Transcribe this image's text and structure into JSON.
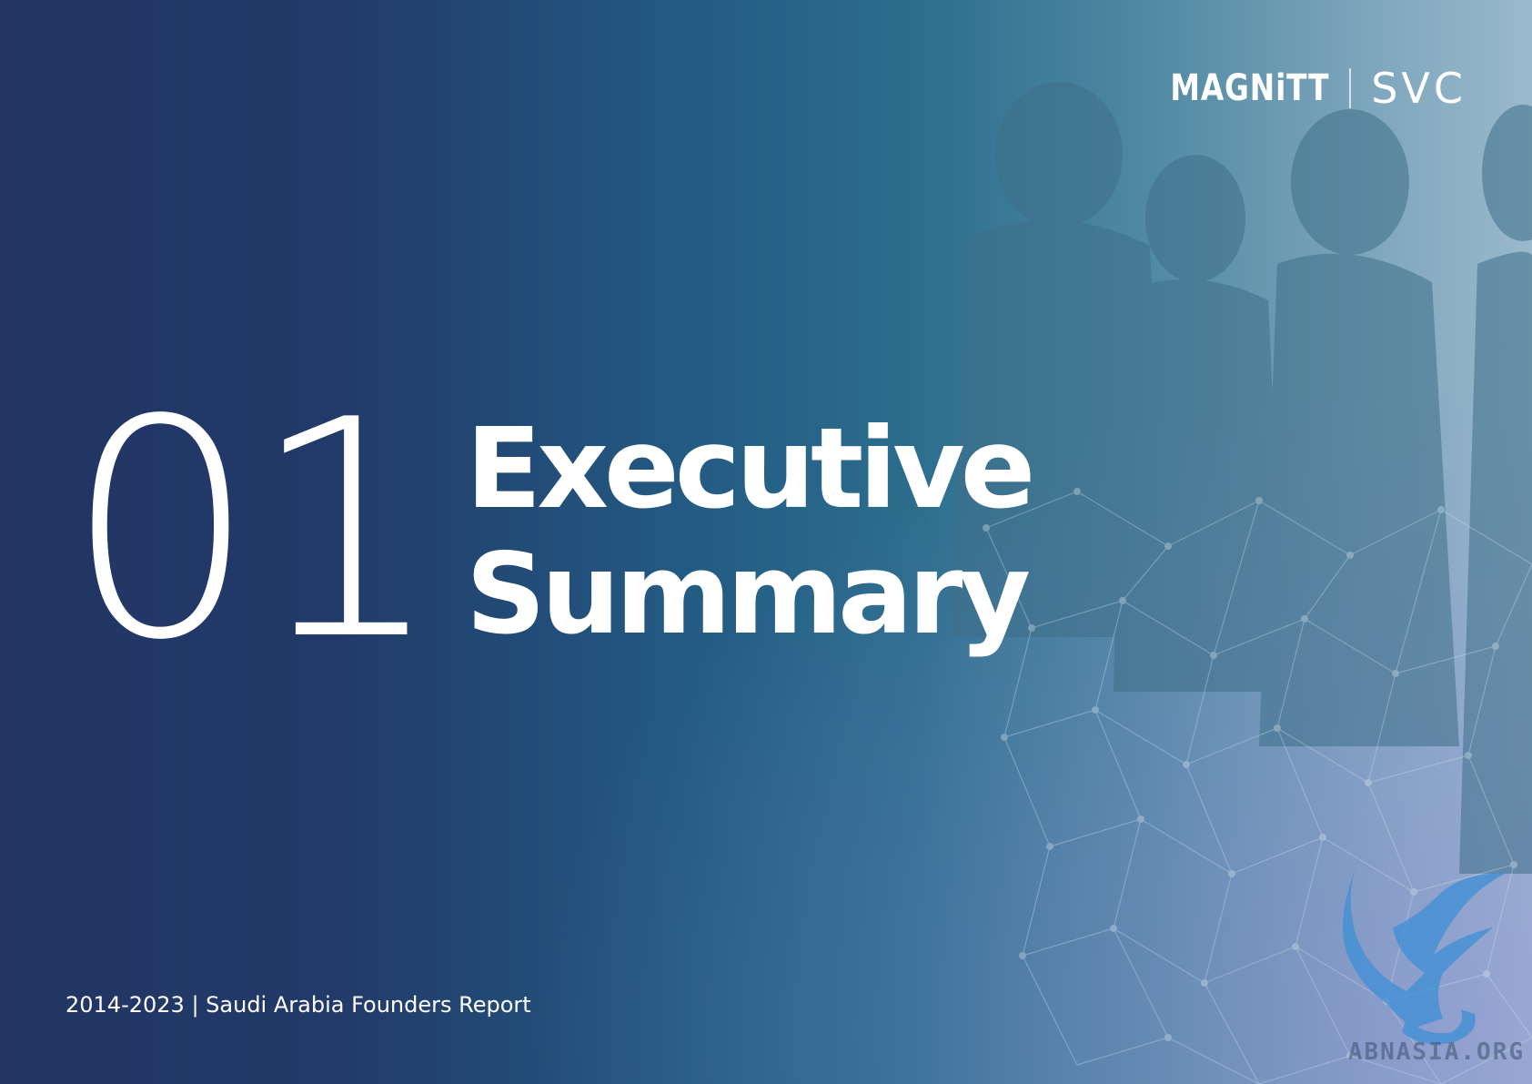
{
  "logos": {
    "magnitt": "MAGNiTT",
    "svc": "SVC"
  },
  "section": {
    "number": "01",
    "title_line1": "Executive",
    "title_line2": "Summary"
  },
  "footer": {
    "text": "2014-2023 | Saudi Arabia Founders Report"
  },
  "watermark": {
    "text": "ABNASIA.ORG"
  },
  "colors": {
    "background_left": "#223565",
    "background_mid": "#2c6e8e",
    "background_right": "#9ab9cc",
    "text": "#ffffff"
  }
}
